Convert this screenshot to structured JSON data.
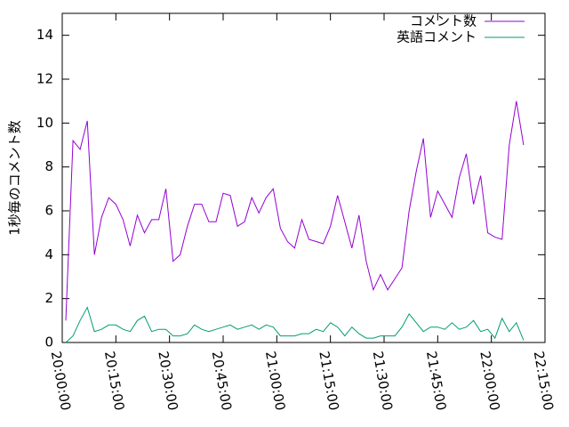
{
  "chart_data": {
    "type": "line",
    "ylabel": "1秒毎のコメント数",
    "x": [
      1201,
      1203,
      1205,
      1207,
      1209,
      1211,
      1213,
      1215,
      1217,
      1219,
      1221,
      1223,
      1225,
      1227,
      1229,
      1231,
      1233,
      1235,
      1237,
      1239,
      1241,
      1243,
      1245,
      1247,
      1249,
      1251,
      1253,
      1255,
      1257,
      1259,
      1261,
      1263,
      1265,
      1267,
      1269,
      1271,
      1273,
      1275,
      1277,
      1279,
      1281,
      1283,
      1285,
      1287,
      1289,
      1291,
      1293,
      1295,
      1297,
      1299,
      1301,
      1303,
      1305,
      1307,
      1309,
      1311,
      1313,
      1315,
      1317,
      1319,
      1321,
      1323,
      1325,
      1327,
      1329
    ],
    "series": [
      {
        "name": "コメント数",
        "color": "#9400d3",
        "values": [
          1.0,
          9.2,
          8.8,
          10.1,
          4.0,
          5.7,
          6.6,
          6.3,
          5.6,
          4.4,
          5.8,
          5.0,
          5.6,
          5.6,
          7.0,
          3.7,
          4.0,
          5.3,
          6.3,
          6.3,
          5.5,
          5.5,
          6.8,
          6.7,
          5.3,
          5.5,
          6.6,
          5.9,
          6.6,
          7.0,
          5.2,
          4.6,
          4.3,
          5.6,
          4.7,
          4.6,
          4.5,
          5.3,
          6.7,
          5.5,
          4.3,
          5.8,
          3.7,
          2.4,
          3.1,
          2.4,
          2.9,
          3.4,
          6.0,
          7.8,
          9.3,
          5.7,
          6.9,
          6.3,
          5.7,
          7.5,
          8.6,
          6.3,
          7.6,
          5.0,
          4.8,
          4.7,
          9.0,
          11.0,
          9.0
        ]
      },
      {
        "name": "英語コメント",
        "color": "#009e73",
        "values": [
          0.0,
          0.3,
          1.0,
          1.6,
          0.5,
          0.6,
          0.8,
          0.8,
          0.6,
          0.5,
          1.0,
          1.2,
          0.5,
          0.6,
          0.6,
          0.3,
          0.3,
          0.4,
          0.8,
          0.6,
          0.5,
          0.6,
          0.7,
          0.8,
          0.6,
          0.7,
          0.8,
          0.6,
          0.8,
          0.7,
          0.3,
          0.3,
          0.3,
          0.4,
          0.4,
          0.6,
          0.5,
          0.9,
          0.7,
          0.3,
          0.7,
          0.4,
          0.2,
          0.2,
          0.3,
          0.3,
          0.3,
          0.7,
          1.3,
          0.9,
          0.5,
          0.7,
          0.7,
          0.6,
          0.9,
          0.6,
          0.7,
          1.0,
          0.5,
          0.6,
          0.2,
          1.1,
          0.5,
          0.9,
          0.1
        ]
      }
    ],
    "xlim": [
      1200,
      1335
    ],
    "xticks": [
      {
        "value": 1200,
        "label": "20:00:00"
      },
      {
        "value": 1215,
        "label": "20:15:00"
      },
      {
        "value": 1230,
        "label": "20:30:00"
      },
      {
        "value": 1245,
        "label": "20:45:00"
      },
      {
        "value": 1260,
        "label": "21:00:00"
      },
      {
        "value": 1275,
        "label": "21:15:00"
      },
      {
        "value": 1290,
        "label": "21:30:00"
      },
      {
        "value": 1305,
        "label": "21:45:00"
      },
      {
        "value": 1320,
        "label": "22:00:00"
      },
      {
        "value": 1335,
        "label": "22:15:00"
      }
    ],
    "ylim": [
      0,
      15
    ],
    "yticks": [
      0,
      2,
      4,
      6,
      8,
      10,
      12,
      14
    ],
    "legend": "top-right"
  }
}
